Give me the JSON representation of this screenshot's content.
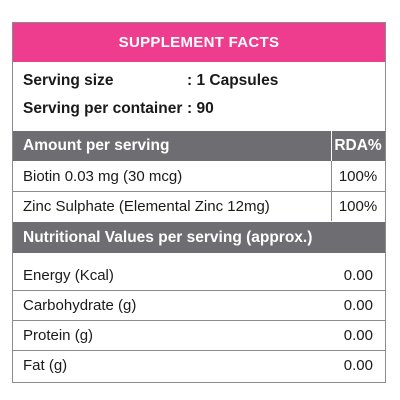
{
  "title": "SUPPLEMENT FACTS",
  "info": [
    {
      "label": "Serving size",
      "value": ": 1 Capsules"
    },
    {
      "label": "Serving per container",
      "value": ": 90"
    }
  ],
  "amount_header": {
    "label": "Amount per serving",
    "rda": "RDA%"
  },
  "ingredients": [
    {
      "name": "Biotin 0.03 mg (30 mcg)",
      "rda": "100%"
    },
    {
      "name": "Zinc Sulphate (Elemental Zinc 12mg)",
      "rda": "100%"
    }
  ],
  "nutrition_header": "Nutritional Values per serving (approx.)",
  "nutrition": [
    {
      "name": "Energy (Kcal)",
      "value": "0.00"
    },
    {
      "name": "Carbohydrate (g)",
      "value": "0.00"
    },
    {
      "name": "Protein (g)",
      "value": "0.00"
    },
    {
      "name": "Fat (g)",
      "value": "0.00"
    }
  ],
  "colors": {
    "title_bg": "#ee3d8e",
    "header_bg": "#6e6e72"
  }
}
